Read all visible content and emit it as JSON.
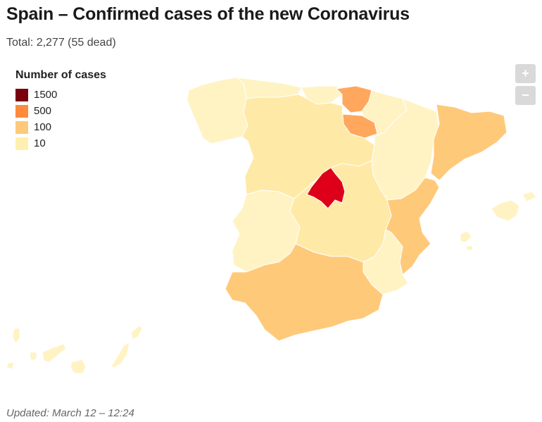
{
  "header": {
    "title": "Spain – Confirmed cases of the new Coronavirus",
    "subtitle": "Total: 2,277 (55 dead)"
  },
  "legend": {
    "title": "Number of cases",
    "items": [
      {
        "label": "1500",
        "color": "#7a0010"
      },
      {
        "label": "500",
        "color": "#ff8a3d"
      },
      {
        "label": "100",
        "color": "#ffc97a"
      },
      {
        "label": "10",
        "color": "#ffefb0"
      }
    ]
  },
  "zoom": {
    "in_label": "+",
    "out_label": "−"
  },
  "colors": {
    "madrid": "#dd0018",
    "light": "#ffe9a6",
    "pale": "#fff3c4",
    "mid": "#ffc97a",
    "orange": "#ffa75c"
  },
  "footer": {
    "updated": "Updated: March 12 – 12:24"
  }
}
